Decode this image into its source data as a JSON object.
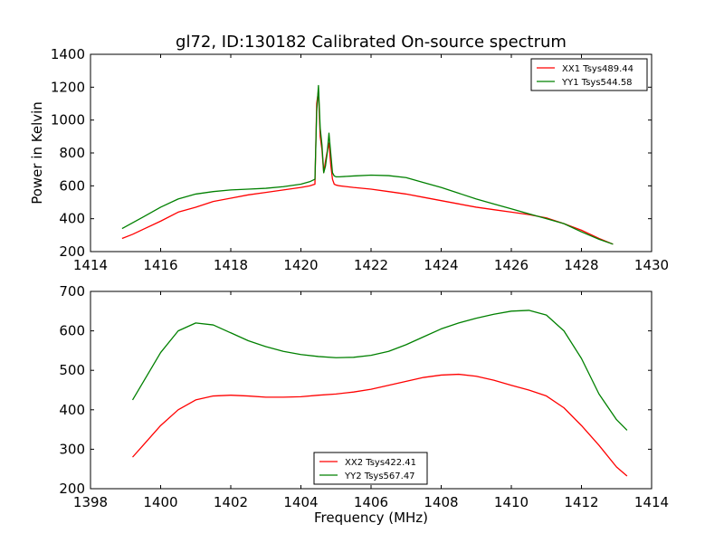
{
  "chart_data": [
    {
      "type": "line",
      "title": "gl72, ID:130182 Calibrated On-source spectrum",
      "xlabel": "",
      "ylabel": "Power in Kelvin",
      "xlim": [
        1414,
        1430
      ],
      "ylim": [
        200,
        1400
      ],
      "xticks": [
        1414,
        1416,
        1418,
        1420,
        1422,
        1424,
        1426,
        1428,
        1430
      ],
      "yticks": [
        200,
        400,
        600,
        800,
        1000,
        1200,
        1400
      ],
      "grid": false,
      "legend_position": "top-right",
      "series": [
        {
          "name": "XX1 Tsys489.44",
          "color": "#ff0000",
          "x": [
            1414.9,
            1415.2,
            1415.5,
            1416.0,
            1416.5,
            1417.0,
            1417.5,
            1418.0,
            1418.5,
            1419.0,
            1419.5,
            1420.0,
            1420.25,
            1420.4,
            1420.45,
            1420.5,
            1420.55,
            1420.6,
            1420.65,
            1420.7,
            1420.75,
            1420.8,
            1420.85,
            1420.9,
            1420.95,
            1421.0,
            1421.1,
            1421.5,
            1422.0,
            1422.5,
            1423.0,
            1423.5,
            1424.0,
            1424.5,
            1425.0,
            1425.5,
            1426.0,
            1426.5,
            1427.0,
            1427.5,
            1428.0,
            1428.5,
            1428.9
          ],
          "y": [
            280,
            305,
            335,
            385,
            440,
            470,
            505,
            525,
            545,
            560,
            575,
            590,
            600,
            610,
            1100,
            1180,
            900,
            820,
            680,
            750,
            810,
            860,
            730,
            640,
            610,
            605,
            600,
            590,
            580,
            565,
            550,
            530,
            510,
            490,
            470,
            455,
            440,
            425,
            405,
            370,
            330,
            280,
            245
          ]
        },
        {
          "name": "YY1 Tsys544.58",
          "color": "#008000",
          "x": [
            1414.9,
            1415.2,
            1415.5,
            1416.0,
            1416.5,
            1417.0,
            1417.5,
            1418.0,
            1418.5,
            1419.0,
            1419.5,
            1420.0,
            1420.25,
            1420.4,
            1420.45,
            1420.5,
            1420.55,
            1420.6,
            1420.65,
            1420.7,
            1420.75,
            1420.8,
            1420.85,
            1420.9,
            1420.95,
            1421.0,
            1421.1,
            1421.5,
            1422.0,
            1422.5,
            1423.0,
            1423.5,
            1424.0,
            1424.5,
            1425.0,
            1425.5,
            1426.0,
            1426.5,
            1427.0,
            1427.5,
            1428.0,
            1428.5,
            1428.9
          ],
          "y": [
            340,
            375,
            410,
            470,
            520,
            550,
            565,
            575,
            580,
            585,
            595,
            610,
            625,
            640,
            1050,
            1210,
            950,
            850,
            680,
            720,
            800,
            920,
            800,
            680,
            660,
            655,
            655,
            660,
            665,
            662,
            650,
            620,
            590,
            555,
            520,
            490,
            460,
            430,
            400,
            370,
            320,
            275,
            245
          ]
        }
      ]
    },
    {
      "type": "line",
      "title": "",
      "xlabel": "Frequency (MHz)",
      "ylabel": "",
      "xlim": [
        1398,
        1414
      ],
      "ylim": [
        200,
        700
      ],
      "xticks": [
        1398,
        1400,
        1402,
        1404,
        1406,
        1408,
        1410,
        1412,
        1414
      ],
      "yticks": [
        200,
        300,
        400,
        500,
        600,
        700
      ],
      "grid": false,
      "legend_position": "bottom-center",
      "series": [
        {
          "name": "XX2 Tsys422.41",
          "color": "#ff0000",
          "x": [
            1399.2,
            1399.5,
            1400.0,
            1400.5,
            1401.0,
            1401.5,
            1402.0,
            1402.5,
            1403.0,
            1403.5,
            1404.0,
            1404.5,
            1405.0,
            1405.5,
            1406.0,
            1406.5,
            1407.0,
            1407.5,
            1408.0,
            1408.5,
            1409.0,
            1409.5,
            1410.0,
            1410.5,
            1411.0,
            1411.5,
            1412.0,
            1412.5,
            1413.0,
            1413.3
          ],
          "y": [
            280,
            310,
            360,
            400,
            425,
            435,
            437,
            435,
            432,
            432,
            433,
            437,
            440,
            445,
            452,
            462,
            472,
            482,
            488,
            490,
            485,
            475,
            462,
            450,
            435,
            405,
            360,
            310,
            255,
            232
          ]
        },
        {
          "name": "YY2 Tsys567.47",
          "color": "#008000",
          "x": [
            1399.2,
            1399.5,
            1400.0,
            1400.5,
            1401.0,
            1401.5,
            1402.0,
            1402.5,
            1403.0,
            1403.5,
            1404.0,
            1404.5,
            1405.0,
            1405.5,
            1406.0,
            1406.5,
            1407.0,
            1407.5,
            1408.0,
            1408.5,
            1409.0,
            1409.5,
            1410.0,
            1410.5,
            1411.0,
            1411.5,
            1412.0,
            1412.5,
            1413.0,
            1413.3
          ],
          "y": [
            425,
            470,
            545,
            600,
            620,
            615,
            595,
            575,
            560,
            548,
            540,
            535,
            532,
            533,
            538,
            548,
            565,
            585,
            605,
            620,
            632,
            642,
            650,
            652,
            640,
            600,
            530,
            440,
            375,
            348
          ]
        }
      ]
    }
  ]
}
